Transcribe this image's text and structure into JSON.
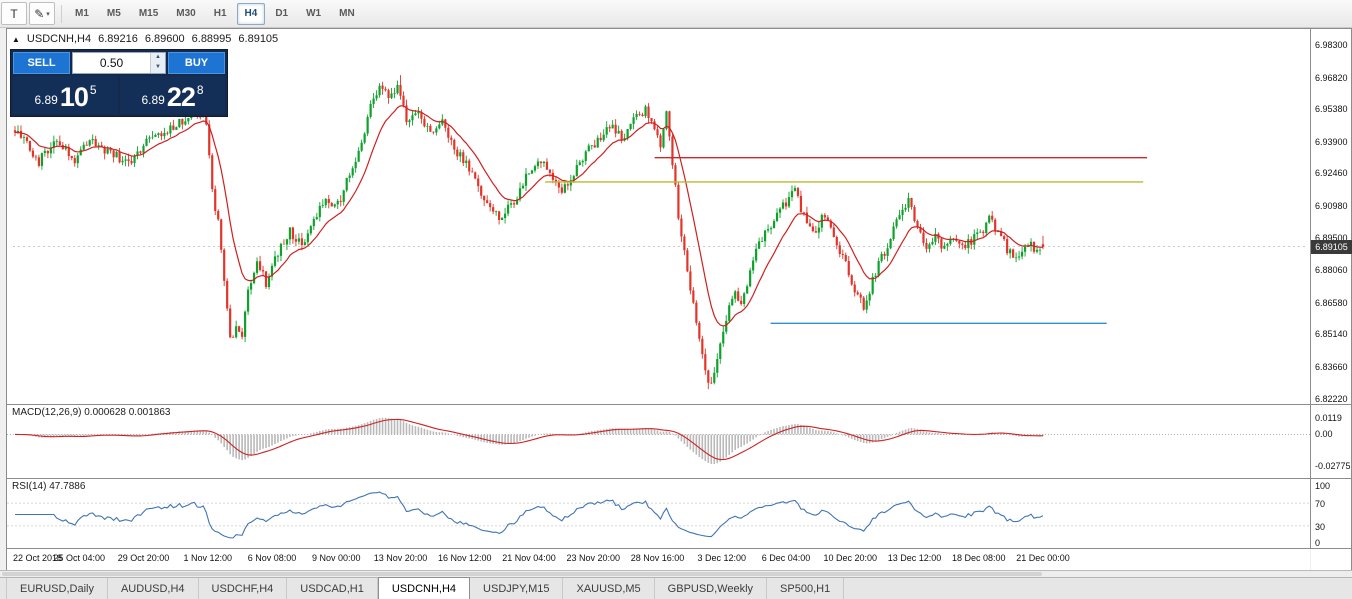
{
  "toolbar": {
    "left_buttons": [
      {
        "name": "cursor-tool",
        "glyph": "T"
      },
      {
        "name": "draw-tool",
        "glyph": "✎",
        "caret": "▾"
      }
    ],
    "timeframes": [
      "M1",
      "M5",
      "M15",
      "M30",
      "H1",
      "H4",
      "D1",
      "W1",
      "MN"
    ],
    "active_timeframe": "H4"
  },
  "chart_header": {
    "symbol": "USDCNH,H4",
    "open": "6.89216",
    "high": "6.89600",
    "low": "6.88995",
    "close": "6.89105"
  },
  "trade_panel": {
    "collapse_icon": "▲",
    "sell_label": "SELL",
    "buy_label": "BUY",
    "volume": "0.50",
    "vol_up_icon": "▲",
    "vol_down_icon": "▼",
    "sell_price_small": "6.89",
    "sell_price_big": "10",
    "sell_price_sup": "5",
    "buy_price_small": "6.89",
    "buy_price_big": "22",
    "buy_price_sup": "8"
  },
  "price_scale": {
    "ticks": [
      "6.98300",
      "6.96820",
      "6.95380",
      "6.93900",
      "6.92460",
      "6.90980",
      "6.89500",
      "6.88060",
      "6.86580",
      "6.85140",
      "6.83660",
      "6.82220"
    ],
    "current_price": "6.89105"
  },
  "macd_panel": {
    "label": "MACD(12,26,9) 0.000628 0.001863",
    "scale_ticks": [
      "0.0119",
      "0.00",
      "-0.02775"
    ]
  },
  "rsi_panel": {
    "label": "RSI(14) 47.7886",
    "scale_ticks": [
      "100",
      "70",
      "30",
      "0"
    ]
  },
  "time_axis": [
    "22 Oct 2018",
    "25 Oct 04:00",
    "29 Oct 20:00",
    "1 Nov 12:00",
    "6 Nov 08:00",
    "9 Nov 00:00",
    "13 Nov 20:00",
    "16 Nov 12:00",
    "21 Nov 04:00",
    "23 Nov 20:00",
    "28 Nov 16:00",
    "3 Dec 12:00",
    "6 Dec 04:00",
    "10 Dec 20:00",
    "13 Dec 12:00",
    "18 Dec 08:00",
    "21 Dec 00:00"
  ],
  "tabs": [
    "EURUSD,Daily",
    "AUDUSD,H4",
    "USDCHF,H4",
    "USDCAD,H1",
    "USDCNH,H4",
    "USDJPY,M15",
    "XAUUSD,M5",
    "GBPUSD,Weekly",
    "SP500,H1"
  ],
  "active_tab": "USDCNH,H4",
  "chart_data": {
    "type": "candlestick+indicators",
    "symbol": "USDCNH",
    "timeframe": "H4",
    "bars": 345,
    "axis": {
      "price_min": 6.8195,
      "price_max": 6.9905,
      "ticks": [
        6.983,
        6.9682,
        6.9538,
        6.939,
        6.9246,
        6.9098,
        6.895,
        6.8806,
        6.8658,
        6.8514,
        6.8366,
        6.8222
      ]
    },
    "price_waypoints": [
      [
        0,
        6.944
      ],
      [
        8,
        6.93
      ],
      [
        14,
        6.939
      ],
      [
        20,
        6.931
      ],
      [
        26,
        6.94
      ],
      [
        32,
        6.9335
      ],
      [
        38,
        6.929
      ],
      [
        44,
        6.938
      ],
      [
        50,
        6.944
      ],
      [
        56,
        6.948
      ],
      [
        61,
        6.952
      ],
      [
        64,
        6.948
      ],
      [
        66,
        6.915
      ],
      [
        68,
        6.902
      ],
      [
        70,
        6.876
      ],
      [
        72,
        6.848
      ],
      [
        74,
        6.856
      ],
      [
        76,
        6.852
      ],
      [
        78,
        6.87
      ],
      [
        81,
        6.886
      ],
      [
        84,
        6.8745
      ],
      [
        88,
        6.889
      ],
      [
        92,
        6.898
      ],
      [
        96,
        6.891
      ],
      [
        100,
        6.904
      ],
      [
        104,
        6.913
      ],
      [
        108,
        6.91
      ],
      [
        112,
        6.924
      ],
      [
        116,
        6.939
      ],
      [
        119,
        6.955
      ],
      [
        122,
        6.965
      ],
      [
        125,
        6.958
      ],
      [
        128,
        6.964
      ],
      [
        131,
        6.948
      ],
      [
        135,
        6.953
      ],
      [
        139,
        6.942
      ],
      [
        143,
        6.947
      ],
      [
        147,
        6.935
      ],
      [
        151,
        6.93
      ],
      [
        155,
        6.918
      ],
      [
        159,
        6.909
      ],
      [
        163,
        6.904
      ],
      [
        167,
        6.912
      ],
      [
        171,
        6.923
      ],
      [
        175,
        6.93
      ],
      [
        179,
        6.925
      ],
      [
        183,
        6.917
      ],
      [
        187,
        6.925
      ],
      [
        191,
        6.933
      ],
      [
        195,
        6.94
      ],
      [
        199,
        6.946
      ],
      [
        203,
        6.94
      ],
      [
        207,
        6.948
      ],
      [
        211,
        6.954
      ],
      [
        214,
        6.946
      ],
      [
        216,
        6.936
      ],
      [
        218,
        6.952
      ],
      [
        220,
        6.93
      ],
      [
        222,
        6.906
      ],
      [
        225,
        6.88
      ],
      [
        228,
        6.856
      ],
      [
        231,
        6.833
      ],
      [
        233,
        6.827
      ],
      [
        235,
        6.842
      ],
      [
        238,
        6.858
      ],
      [
        241,
        6.872
      ],
      [
        243,
        6.864
      ],
      [
        246,
        6.88
      ],
      [
        249,
        6.892
      ],
      [
        253,
        6.901
      ],
      [
        257,
        6.909
      ],
      [
        261,
        6.916
      ],
      [
        264,
        6.905
      ],
      [
        268,
        6.898
      ],
      [
        271,
        6.906
      ],
      [
        274,
        6.895
      ],
      [
        277,
        6.886
      ],
      [
        281,
        6.872
      ],
      [
        284,
        6.863
      ],
      [
        287,
        6.876
      ],
      [
        290,
        6.886
      ],
      [
        293,
        6.895
      ],
      [
        296,
        6.906
      ],
      [
        299,
        6.911
      ],
      [
        302,
        6.899
      ],
      [
        305,
        6.892
      ],
      [
        308,
        6.897
      ],
      [
        311,
        6.89
      ],
      [
        314,
        6.895
      ],
      [
        318,
        6.892
      ],
      [
        322,
        6.896
      ],
      [
        326,
        6.903
      ],
      [
        329,
        6.898
      ],
      [
        332,
        6.89
      ],
      [
        335,
        6.886
      ],
      [
        338,
        6.893
      ],
      [
        341,
        6.89
      ],
      [
        344,
        6.89105
      ]
    ],
    "last_bar": [
      6.89216,
      6.896,
      6.88995,
      6.89105
    ],
    "last_close": 6.89105,
    "ma": {
      "type": "ema",
      "period": 13,
      "color": "#d02020"
    },
    "macd": {
      "fast": 12,
      "slow": 26,
      "signal": 9,
      "current": [
        0.000628,
        0.001863
      ],
      "scale": [
        0.0119,
        0.0,
        -0.02775
      ]
    },
    "rsi": {
      "period": 14,
      "current": 47.7886,
      "levels": [
        70,
        30
      ]
    },
    "hlines": [
      {
        "color": "#cc2a2a",
        "price": 6.9315,
        "x1": 0.497,
        "x2": 0.875
      },
      {
        "color": "#b9bb2a",
        "price": 6.9205,
        "x1": 0.413,
        "x2": 0.872
      },
      {
        "color": "#2f8fd0",
        "price": 6.8562,
        "x1": 0.586,
        "x2": 0.844
      }
    ],
    "colors": {
      "up": "#0da32b",
      "down": "#e3342a",
      "ma": "#d02020",
      "macd_hist": "#b9b9b9",
      "macd_signal": "#cf2222",
      "rsi_line": "#3f74b5",
      "bid_line": "#aaaaaa"
    }
  }
}
